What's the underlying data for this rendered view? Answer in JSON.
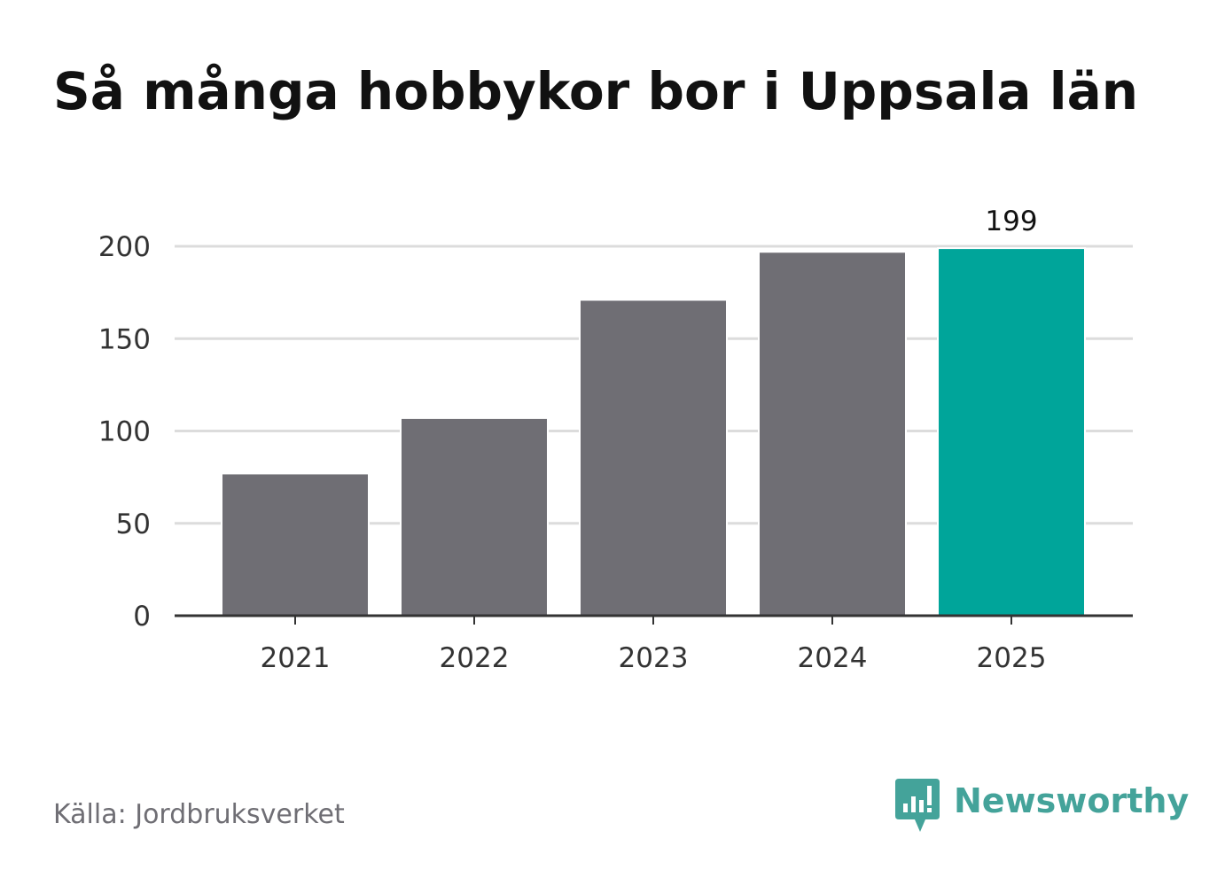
{
  "title": "Så många hobbykor bor i Uppsala län",
  "source": "Källa: Jordbruksverket",
  "brand": {
    "name": "Newsworthy",
    "icon": "newsworthy-chart-bubble-icon",
    "color": "#44a39a"
  },
  "colors": {
    "bar": "#6f6e74",
    "highlight": "#00a59a",
    "grid": "#dcdcdc",
    "axis": "#333333",
    "tick_text": "#333333"
  },
  "chart_data": {
    "type": "bar",
    "title": "Så många hobbykor bor i Uppsala län",
    "xlabel": "",
    "ylabel": "",
    "categories": [
      "2021",
      "2022",
      "2023",
      "2024",
      "2025"
    ],
    "values": [
      77,
      107,
      171,
      197,
      199
    ],
    "highlight_index": 4,
    "data_labels": [
      {
        "index": 4,
        "text": "199"
      }
    ],
    "ylim": [
      0,
      200
    ],
    "yticks": [
      0,
      50,
      100,
      150,
      200
    ],
    "grid": true,
    "legend": "none"
  }
}
